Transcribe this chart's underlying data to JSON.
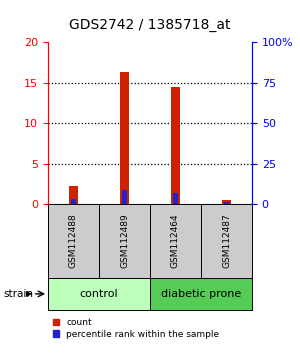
{
  "title": "GDS2742 / 1385718_at",
  "samples": [
    "GSM112488",
    "GSM112489",
    "GSM112464",
    "GSM112487"
  ],
  "count_values": [
    2.2,
    16.3,
    14.5,
    0.5
  ],
  "percentile_values": [
    3.3,
    8.4,
    6.8,
    1.1
  ],
  "ylim_left": [
    0,
    20
  ],
  "ylim_right": [
    0,
    100
  ],
  "yticks_left": [
    0,
    5,
    10,
    15,
    20
  ],
  "yticks_right": [
    0,
    25,
    50,
    75,
    100
  ],
  "yticklabels_right": [
    "0",
    "25",
    "50",
    "75",
    "100%"
  ],
  "bar_color": "#cc2200",
  "pct_color": "#2222cc",
  "groups": [
    {
      "label": "control",
      "color": "#bbffbb"
    },
    {
      "label": "diabetic prone",
      "color": "#55cc55"
    }
  ],
  "strain_label": "strain",
  "legend_count": "count",
  "legend_pct": "percentile rank within the sample",
  "background_color": "#ffffff",
  "sample_box_color": "#cccccc",
  "title_fontsize": 10,
  "tick_fontsize": 8,
  "sample_fontsize": 6.5,
  "group_fontsize": 8,
  "legend_fontsize": 6.5,
  "strain_fontsize": 7.5
}
